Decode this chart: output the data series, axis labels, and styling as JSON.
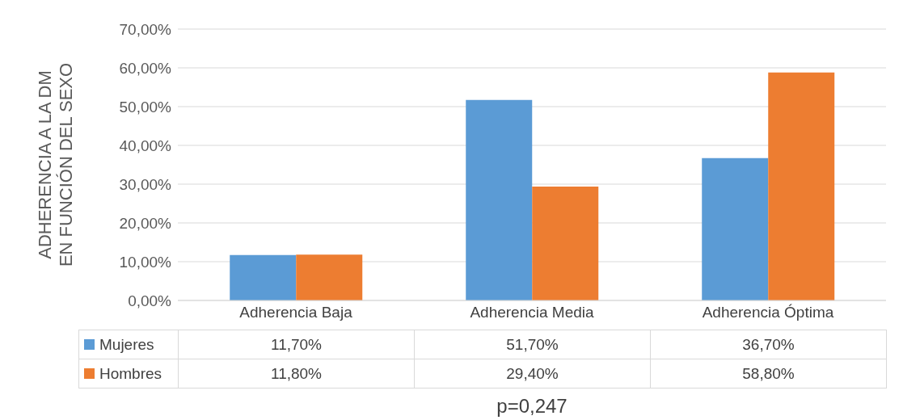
{
  "chart_data": {
    "type": "bar",
    "ylabel": "ADHERENCIA A LA DM EN FUNCIÓN DEL SEXO",
    "categories": [
      "Adherencia Baja",
      "Adherencia Media",
      "Adherencia Óptima"
    ],
    "series": [
      {
        "name": "Mujeres",
        "color": "#5b9bd5",
        "values": [
          11.7,
          51.7,
          36.7
        ],
        "value_labels": [
          "11,70%",
          "51,70%",
          "36,70%"
        ]
      },
      {
        "name": "Hombres",
        "color": "#ed7d31",
        "values": [
          11.8,
          29.4,
          58.8
        ],
        "value_labels": [
          "11,80%",
          "29,40%",
          "58,80%"
        ]
      }
    ],
    "ylim": [
      0,
      70
    ],
    "yticks": [
      {
        "value": 0,
        "label": "0,00%"
      },
      {
        "value": 10,
        "label": "10,00%"
      },
      {
        "value": 20,
        "label": "20,00%"
      },
      {
        "value": 30,
        "label": "30,00%"
      },
      {
        "value": 40,
        "label": "40,00%"
      },
      {
        "value": 50,
        "label": "50,00%"
      },
      {
        "value": 60,
        "label": "60,00%"
      },
      {
        "value": 70,
        "label": "70,00%"
      }
    ],
    "grid": "y",
    "legend": "bottom",
    "annotations": [
      "p=0,247"
    ]
  }
}
